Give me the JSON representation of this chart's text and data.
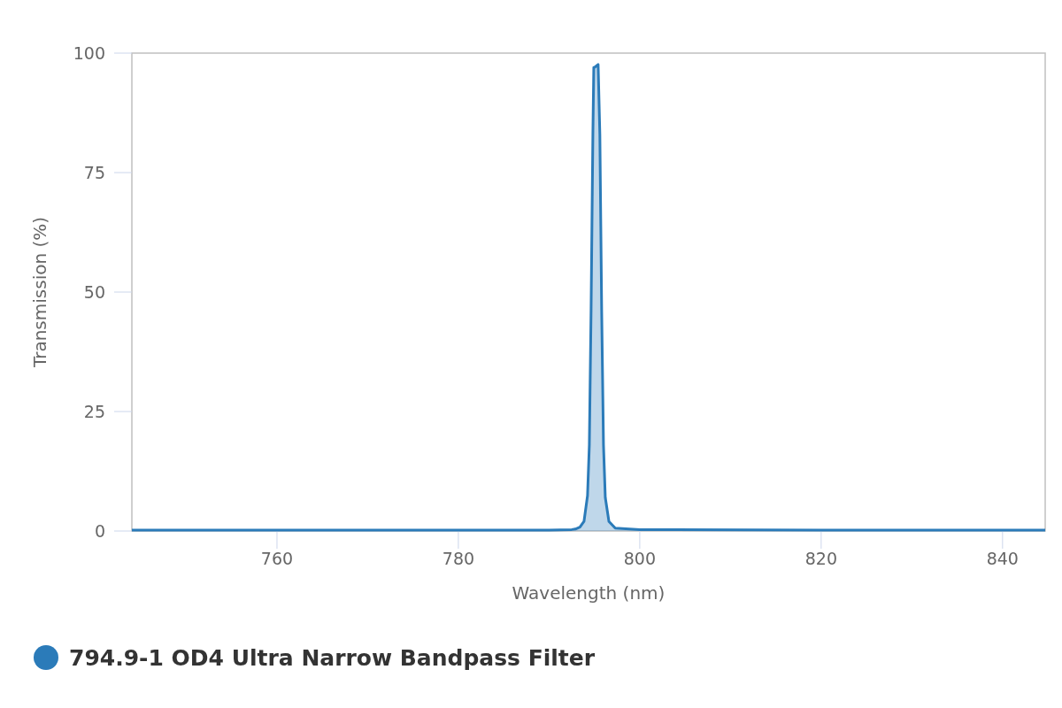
{
  "chart_data": {
    "type": "area",
    "xlabel": "Wavelength (nm)",
    "ylabel": "Transmission (%)",
    "xlim": [
      744,
      844.7
    ],
    "xticks": [
      760,
      780,
      800,
      820,
      840
    ],
    "ylim": [
      0,
      100
    ],
    "yticks": [
      0,
      25,
      50,
      75,
      100
    ],
    "grid": false,
    "legend": "bottom left",
    "series": [
      {
        "name": "794.9-1 OD4 Ultra Narrow Bandpass Filter",
        "color": "#2b7bb9",
        "x": [
          744,
          770,
          790,
          792.5,
          792.9,
          793.4,
          793.85,
          794.24,
          794.44,
          794.63,
          794.83,
          794.93,
          795.0,
          795.41,
          795.6,
          795.8,
          796.0,
          796.2,
          796.6,
          797.3,
          800,
          820,
          844.7
        ],
        "values": [
          0.2,
          0.2,
          0.2,
          0.3,
          0.4,
          0.8,
          2,
          7.4,
          18,
          46,
          83,
          97,
          97,
          97.6,
          83,
          46,
          18,
          7,
          2,
          0.6,
          0.3,
          0.2,
          0.2
        ]
      }
    ]
  }
}
